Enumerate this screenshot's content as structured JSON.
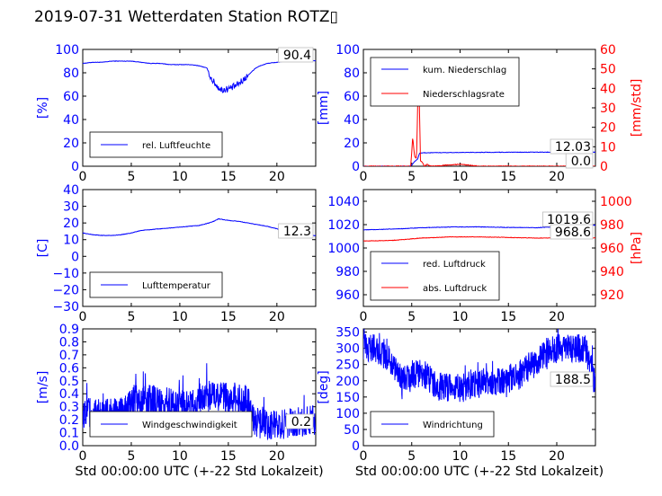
{
  "title": "2019-07-31 Wetterdaten Station ROTZ▯",
  "chart_data": [
    {
      "type": "line",
      "panel": "top-left",
      "xlabel": "",
      "ylabel": "[%]",
      "xlim": [
        0,
        24
      ],
      "ylim": [
        0,
        100
      ],
      "xticks": [
        "0",
        "5",
        "10",
        "15",
        "20"
      ],
      "yticks": [
        "0",
        "20",
        "40",
        "60",
        "80",
        "100"
      ],
      "legend_placement": "lower-left",
      "series": [
        {
          "name": "rel. Luftfeuchte",
          "color": "#0000ff",
          "x": [
            0,
            1,
            2,
            3,
            4,
            5,
            6,
            7,
            8,
            9,
            10,
            11,
            12,
            12.8,
            13.3,
            13.8,
            14.3,
            14.8,
            15.3,
            15.8,
            16.3,
            16.8,
            17.3,
            17.8,
            18.3,
            19,
            20,
            21,
            22,
            23,
            24
          ],
          "y": [
            88,
            89,
            89,
            90,
            90,
            90,
            89,
            88,
            88,
            87,
            87,
            87,
            86,
            84,
            74,
            69,
            65,
            66,
            67,
            69,
            72,
            76,
            80,
            84,
            86,
            88,
            89,
            90,
            90,
            90,
            90.4
          ]
        }
      ],
      "annotations": [
        {
          "text": "90.4",
          "color": "#000000"
        }
      ]
    },
    {
      "type": "line",
      "panel": "top-right",
      "xlabel": "",
      "ylabel": "[mm]",
      "ylabel_right": "[mm/std]",
      "xlim": [
        0,
        24
      ],
      "ylim": [
        0,
        100
      ],
      "ylim_right": [
        0,
        60
      ],
      "xticks": [
        "0",
        "5",
        "10",
        "15",
        "20"
      ],
      "yticks": [
        "0",
        "20",
        "40",
        "60",
        "80",
        "100"
      ],
      "yticks_right": [
        "0",
        "10",
        "20",
        "30",
        "40",
        "50",
        "60"
      ],
      "legend_placement": "upper-left",
      "series": [
        {
          "name": "kum. Niederschlag",
          "color": "#0000ff",
          "axis": "left",
          "x": [
            0,
            4.8,
            5.0,
            5.3,
            5.6,
            5.8,
            6.2,
            7,
            10,
            15,
            20,
            24
          ],
          "y": [
            0,
            0,
            1,
            4,
            6,
            11,
            11.5,
            11.6,
            11.8,
            12.0,
            12.03,
            12.03
          ]
        },
        {
          "name": "Niederschlagsrate",
          "color": "#ff0000",
          "axis": "right",
          "x": [
            0,
            4.9,
            5.1,
            5.3,
            5.5,
            5.7,
            5.8,
            5.9,
            6.1,
            6.3,
            6.6,
            7,
            10,
            12,
            24
          ],
          "y": [
            0,
            0,
            15,
            5,
            4,
            52,
            30,
            3,
            2,
            0,
            1,
            0,
            1,
            0,
            0
          ]
        }
      ],
      "annotations": [
        {
          "text": "12.03",
          "color": "#000000"
        },
        {
          "text": "0.0",
          "color": "#000000"
        }
      ]
    },
    {
      "type": "line",
      "panel": "middle-left",
      "xlabel": "",
      "ylabel": "[C]",
      "xlim": [
        0,
        24
      ],
      "ylim": [
        -30,
        40
      ],
      "xticks": [
        "0",
        "5",
        "10",
        "15",
        "20"
      ],
      "yticks": [
        "−30",
        "−20",
        "−10",
        "0",
        "10",
        "20",
        "30",
        "40"
      ],
      "legend_placement": "lower-left",
      "series": [
        {
          "name": "Lufttemperatur",
          "color": "#0000ff",
          "x": [
            0,
            1,
            2,
            3,
            4,
            5,
            6,
            7,
            8,
            9,
            10,
            11,
            12,
            13,
            13.5,
            14,
            14.5,
            15,
            16,
            17,
            18,
            19,
            20,
            21,
            22,
            23,
            24
          ],
          "y": [
            14,
            13,
            12.5,
            12.5,
            13,
            14,
            15.5,
            16,
            16.5,
            17,
            17.5,
            18,
            18.5,
            20,
            21,
            22.5,
            22,
            21.5,
            21,
            20,
            19,
            18,
            16.5,
            15,
            14,
            13,
            12.3
          ]
        }
      ],
      "annotations": [
        {
          "text": "12.3",
          "color": "#000000"
        }
      ]
    },
    {
      "type": "line",
      "panel": "middle-right",
      "xlabel": "",
      "ylabel": "",
      "ylabel_right": "[hPa]",
      "xlim": [
        0,
        24
      ],
      "ylim": [
        950,
        1050
      ],
      "ylim_right": [
        910,
        1010
      ],
      "xticks": [
        "0",
        "5",
        "10",
        "15",
        "20"
      ],
      "yticks": [
        "960",
        "980",
        "1000",
        "1020",
        "1040"
      ],
      "yticks_right": [
        "920",
        "940",
        "960",
        "980",
        "1000"
      ],
      "legend_placement": "lower-left",
      "series": [
        {
          "name": "red. Luftdruck",
          "color": "#0000ff",
          "axis": "left",
          "x": [
            0,
            3,
            6,
            9,
            12,
            15,
            18,
            21,
            24
          ],
          "y": [
            1015.5,
            1016.2,
            1017.3,
            1018.0,
            1018.1,
            1017.6,
            1017.4,
            1018.6,
            1019.6
          ]
        },
        {
          "name": "abs. Luftdruck",
          "color": "#ff0000",
          "axis": "right",
          "x": [
            0,
            3,
            6,
            9,
            12,
            15,
            18,
            21,
            24
          ],
          "y": [
            966,
            966.5,
            968.5,
            969.5,
            969.5,
            969,
            968.5,
            968.5,
            968.6
          ]
        }
      ],
      "annotations": [
        {
          "text": "1019.6",
          "color": "#000000"
        },
        {
          "text": "968.6",
          "color": "#000000"
        }
      ]
    },
    {
      "type": "line",
      "panel": "bottom-left",
      "xlabel": "Std 00:00:00 UTC (+-22 Std Lokalzeit)",
      "ylabel": "[m/s]",
      "xlim": [
        0,
        24
      ],
      "ylim": [
        0,
        0.9
      ],
      "xticks": [
        "0",
        "5",
        "10",
        "15",
        "20"
      ],
      "yticks": [
        "0.0",
        "0.1",
        "0.2",
        "0.3",
        "0.4",
        "0.5",
        "0.6",
        "0.7",
        "0.8",
        "0.9"
      ],
      "legend_placement": "lower-left",
      "noise_amplitude": 0.12,
      "series": [
        {
          "name": "Windgeschwindigkeit",
          "color": "#0000ff",
          "x": [
            0,
            2,
            4,
            5,
            6,
            7,
            8,
            9,
            10,
            11,
            12,
            13,
            14,
            15,
            16,
            17,
            17.5,
            18,
            19,
            20,
            21,
            22,
            23,
            24
          ],
          "y": [
            0.25,
            0.24,
            0.26,
            0.33,
            0.36,
            0.35,
            0.34,
            0.33,
            0.32,
            0.32,
            0.36,
            0.38,
            0.38,
            0.36,
            0.35,
            0.34,
            0.22,
            0.18,
            0.17,
            0.16,
            0.17,
            0.18,
            0.19,
            0.2
          ]
        }
      ],
      "annotations": [
        {
          "text": "0.2",
          "color": "#000000"
        }
      ]
    },
    {
      "type": "line",
      "panel": "bottom-right",
      "xlabel": "Std 00:00:00 UTC (+-22 Std Lokalzeit)",
      "ylabel": "[deg]",
      "xlim": [
        0,
        24
      ],
      "ylim": [
        0,
        360
      ],
      "xticks": [
        "0",
        "5",
        "10",
        "15",
        "20"
      ],
      "yticks": [
        "0",
        "50",
        "100",
        "150",
        "200",
        "250",
        "300",
        "350"
      ],
      "legend_placement": "lower-left",
      "noise_amplitude": 45,
      "series": [
        {
          "name": "Windrichtung",
          "color": "#0000ff",
          "x": [
            0,
            1,
            2,
            3,
            4,
            5,
            6,
            7,
            8,
            9,
            10,
            11,
            12,
            13,
            14,
            15,
            16,
            17,
            18,
            19,
            20,
            21,
            22,
            23,
            24
          ],
          "y": [
            310,
            300,
            290,
            260,
            200,
            210,
            230,
            200,
            180,
            180,
            175,
            185,
            190,
            200,
            195,
            200,
            215,
            240,
            260,
            290,
            300,
            305,
            300,
            295,
            188.5
          ]
        }
      ],
      "annotations": [
        {
          "text": "188.5",
          "color": "#000000"
        }
      ]
    }
  ]
}
